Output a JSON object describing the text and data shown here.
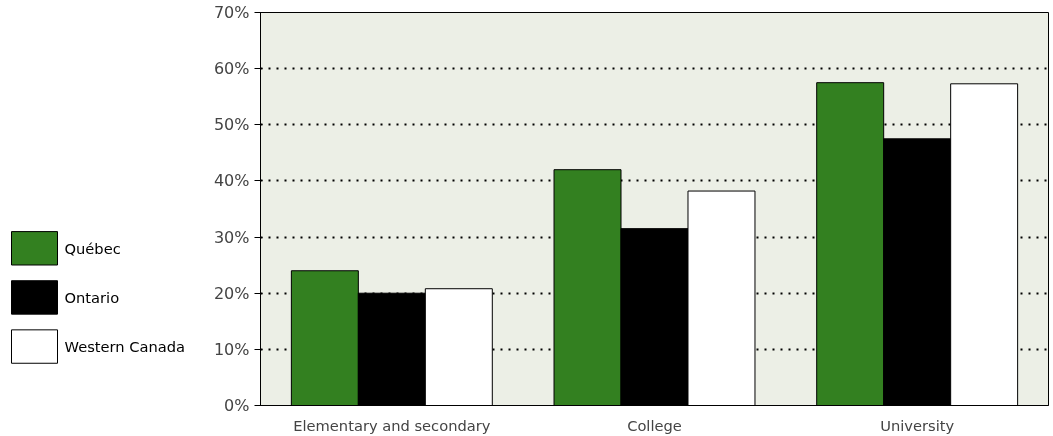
{
  "chart_data": {
    "type": "bar",
    "categories": [
      "Elementary and secondary",
      "College",
      "University"
    ],
    "series": [
      {
        "name": "Québec",
        "color": "#338020",
        "values": [
          24,
          42,
          57.5
        ]
      },
      {
        "name": "Ontario",
        "color": "#000000",
        "values": [
          20,
          31.5,
          47.5
        ]
      },
      {
        "name": "Western Canada",
        "color": "#ffffff",
        "values": [
          20.8,
          38.2,
          57.3
        ]
      }
    ],
    "ylim": [
      0,
      70
    ],
    "yticks": [
      {
        "value": 0,
        "label": "0%"
      },
      {
        "value": 10,
        "label": "10%"
      },
      {
        "value": 20,
        "label": "20%"
      },
      {
        "value": 30,
        "label": "30%"
      },
      {
        "value": 40,
        "label": "40%"
      },
      {
        "value": 50,
        "label": "50%"
      },
      {
        "value": 60,
        "label": "60%"
      },
      {
        "value": 70,
        "label": "70%"
      }
    ],
    "grid": "y",
    "legend": "left"
  }
}
